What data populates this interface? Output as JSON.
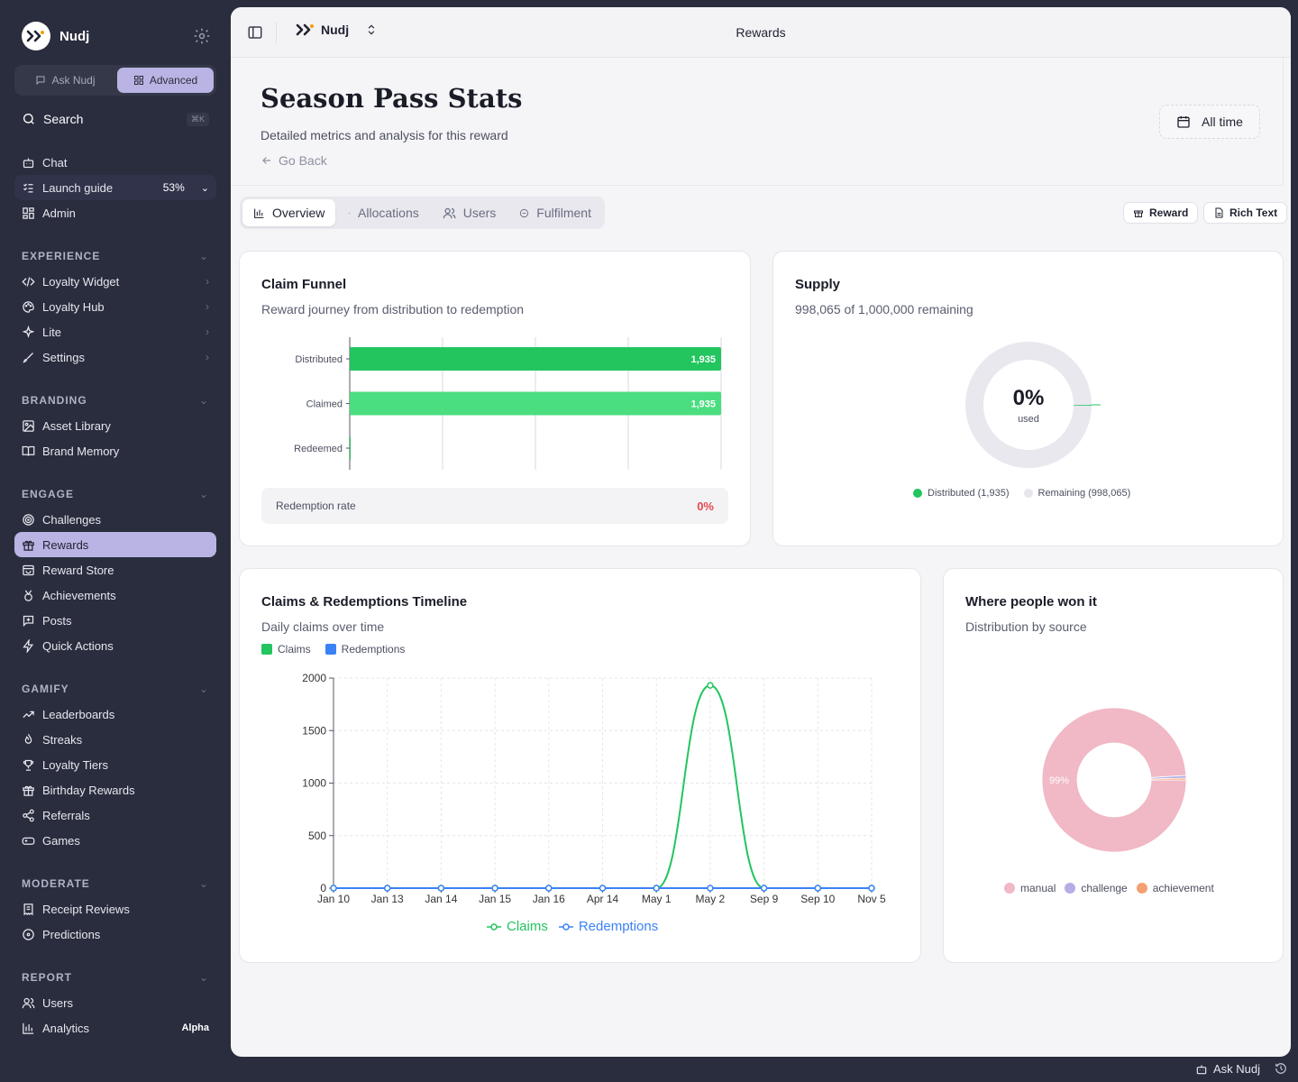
{
  "app": {
    "name": "Nudj",
    "page_title": "Rewards",
    "workspace": "Nudj"
  },
  "sidebar": {
    "mode": {
      "ask": "Ask Nudj",
      "advanced": "Advanced"
    },
    "search": {
      "label": "Search",
      "shortcut": "⌘K"
    },
    "top_items": [
      {
        "label": "Chat"
      },
      {
        "label": "Launch guide",
        "progress": "53%"
      },
      {
        "label": "Admin"
      }
    ],
    "sections": [
      {
        "title": "EXPERIENCE",
        "items": [
          "Loyalty Widget",
          "Loyalty Hub",
          "Lite",
          "Settings"
        ]
      },
      {
        "title": "BRANDING",
        "items": [
          "Asset Library",
          "Brand Memory"
        ]
      },
      {
        "title": "ENGAGE",
        "items": [
          "Challenges",
          "Rewards",
          "Reward Store",
          "Achievements",
          "Posts",
          "Quick Actions"
        ]
      },
      {
        "title": "GAMIFY",
        "items": [
          "Leaderboards",
          "Streaks",
          "Loyalty Tiers",
          "Birthday Rewards",
          "Referrals",
          "Games"
        ]
      },
      {
        "title": "MODERATE",
        "items": [
          "Receipt Reviews",
          "Predictions"
        ]
      },
      {
        "title": "REPORT",
        "items": [
          "Users",
          "Analytics"
        ]
      }
    ],
    "analytics_badge": "Alpha",
    "footer": {
      "ask": "Ask Nudj"
    }
  },
  "header": {
    "title": "Season Pass Stats",
    "subtitle": "Detailed metrics and analysis for this reward",
    "back": "Go Back",
    "time_filter": "All time"
  },
  "tabs": [
    {
      "label": "Overview",
      "active": true
    },
    {
      "label": "Allocations"
    },
    {
      "label": "Users"
    },
    {
      "label": "Fulfilment"
    }
  ],
  "actions": {
    "reward": "Reward",
    "rich_text": "Rich Text"
  },
  "funnel_card": {
    "title": "Claim Funnel",
    "subtitle": "Reward journey from distribution to redemption",
    "rate_label": "Redemption rate",
    "rate_value": "0%"
  },
  "supply_card": {
    "title": "Supply",
    "subtitle": "998,065 of 1,000,000 remaining",
    "center_value": "0%",
    "center_label": "used",
    "legend": [
      "Distributed (1,935)",
      "Remaining (998,065)"
    ]
  },
  "timeline_card": {
    "title": "Claims & Redemptions Timeline",
    "subtitle": "Daily claims over time",
    "legend_top": [
      "Claims",
      "Redemptions"
    ],
    "legend_bottom": [
      "Claims",
      "Redemptions"
    ]
  },
  "source_card": {
    "title": "Where people won it",
    "subtitle": "Distribution by source",
    "legend": [
      "manual",
      "challenge",
      "achievement"
    ],
    "slice_label": "99%"
  },
  "colors": {
    "green": "#22c55e",
    "green_light": "#4ade80",
    "blue": "#3b82f6",
    "pink": "#f1b8c6",
    "purple": "#b4ade6",
    "orange": "#f5a072",
    "accent": "#b9b4e3"
  },
  "chart_data": [
    {
      "type": "bar",
      "orientation": "horizontal",
      "categories": [
        "Distributed",
        "Claimed",
        "Redeemed"
      ],
      "values": [
        1935,
        1935,
        0
      ],
      "data_labels": [
        "1,935",
        "1,935",
        ""
      ]
    },
    {
      "type": "pie",
      "variant": "donut",
      "labels": [
        "Distributed",
        "Remaining"
      ],
      "values": [
        1935,
        998065
      ]
    },
    {
      "type": "line",
      "categories": [
        "Jan 10",
        "Jan 13",
        "Jan 14",
        "Jan 15",
        "Jan 16",
        "Apr 14",
        "May 1",
        "May 2",
        "Sep 9",
        "Sep 10",
        "Nov 5"
      ],
      "series": [
        {
          "name": "Claims",
          "values": [
            0,
            0,
            0,
            0,
            0,
            0,
            0,
            1930,
            0,
            0,
            0
          ]
        },
        {
          "name": "Redemptions",
          "values": [
            0,
            0,
            0,
            0,
            0,
            0,
            0,
            0,
            0,
            0,
            0
          ]
        }
      ],
      "yticks": [
        0,
        500,
        1000,
        1500,
        2000
      ],
      "ylim": [
        0,
        2000
      ],
      "grid": true,
      "legend": "top-left and bottom-center"
    },
    {
      "type": "pie",
      "variant": "donut",
      "labels": [
        "manual",
        "challenge",
        "achievement"
      ],
      "values": [
        99,
        0.6,
        0.4
      ]
    }
  ]
}
